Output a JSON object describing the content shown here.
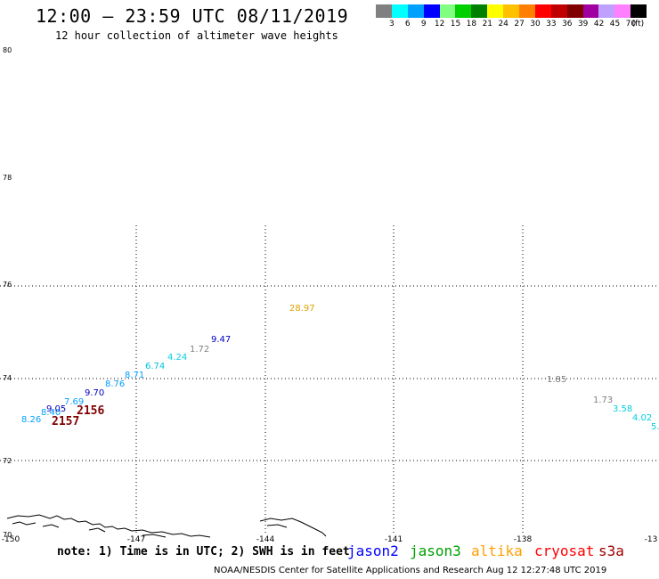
{
  "header": {
    "title": "12:00 — 23:59 UTC 08/11/2019",
    "subtitle": "12 hour collection of altimeter wave heights"
  },
  "legend": {
    "colors": [
      "#808080",
      "#00ffff",
      "#00a0ff",
      "#0000ff",
      "#80ff80",
      "#00d000",
      "#008000",
      "#ffff00",
      "#ffc000",
      "#ff8000",
      "#ff0000",
      "#c00000",
      "#800000",
      "#a000a0",
      "#c0a0ff",
      "#ff80ff",
      "#000000"
    ],
    "labels": [
      "3",
      "6",
      "9",
      "12",
      "15",
      "18",
      "21",
      "24",
      "27",
      "30",
      "33",
      "36",
      "39",
      "42",
      "45",
      "70",
      "(ft)"
    ]
  },
  "axes": {
    "y_labels": [
      "80",
      "78",
      "76",
      "74",
      "72",
      "70"
    ],
    "x_labels": [
      "-150",
      "-147",
      "-144",
      "-141",
      "-138",
      "-13"
    ]
  },
  "observations": [
    {
      "text": "8.26",
      "color": "#00a0ff"
    },
    {
      "text": "8.40",
      "color": "#00a0ff"
    },
    {
      "text": "9.05",
      "color": "#0000c0"
    },
    {
      "text": "2157",
      "color": "#800000"
    },
    {
      "text": "2156",
      "color": "#800000"
    },
    {
      "text": "7.69",
      "color": "#00a0ff"
    },
    {
      "text": "9.70",
      "color": "#0000c0"
    },
    {
      "text": "8.76",
      "color": "#00a0ff"
    },
    {
      "text": "8.71",
      "color": "#00a0ff"
    },
    {
      "text": "6.74",
      "color": "#00c0e0"
    },
    {
      "text": "4.24",
      "color": "#00d0e0"
    },
    {
      "text": "1.72",
      "color": "#808080"
    },
    {
      "text": "9.47",
      "color": "#0000c0"
    },
    {
      "text": "28.97",
      "color": "#e0a000"
    },
    {
      "text": "1.85",
      "color": "#808080"
    },
    {
      "text": "1.73",
      "color": "#808080"
    },
    {
      "text": "3.58",
      "color": "#00d0e0"
    },
    {
      "text": "4.02",
      "color": "#00d0e0"
    },
    {
      "text": "5.",
      "color": "#00d0e0"
    }
  ],
  "note": "note: 1) Time is in UTC; 2) SWH is in feet",
  "satellites": [
    {
      "name": "jason2",
      "color": "#0000ff"
    },
    {
      "name": "jason3",
      "color": "#00a000"
    },
    {
      "name": "altika",
      "color": "#ffa000"
    },
    {
      "name": "cryosat",
      "color": "#ff0000"
    },
    {
      "name": "s3a",
      "color": "#a00000"
    }
  ],
  "footer": "NOAA/NESDIS Center for Satellite Applications and Research    Aug 12 12:27:48 UTC 2019"
}
